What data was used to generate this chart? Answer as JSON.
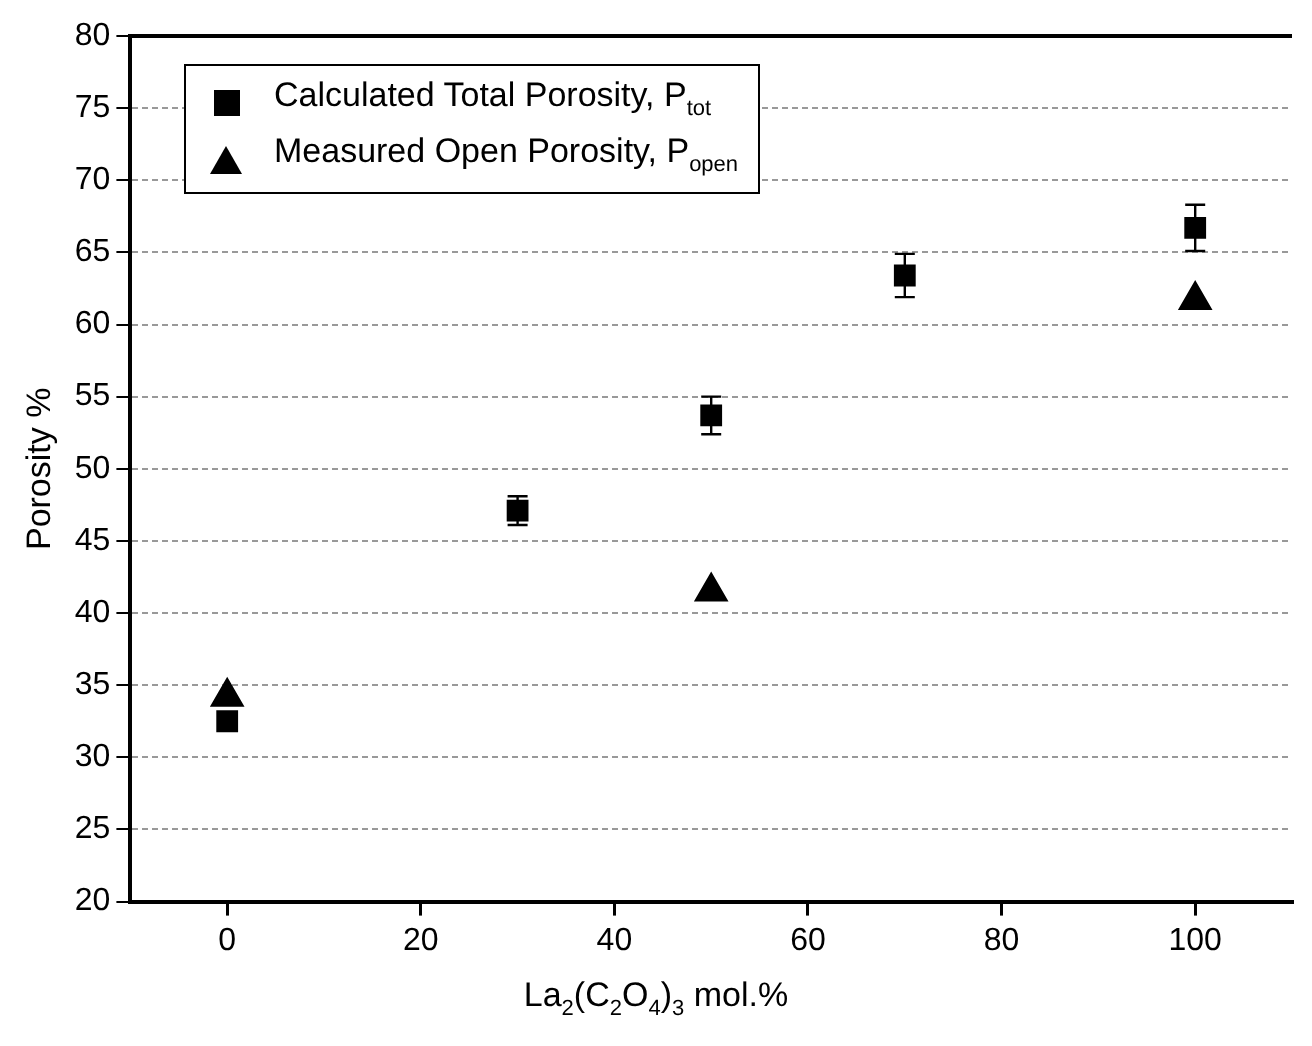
{
  "chart_data": {
    "type": "scatter",
    "xlabel": "La$_{2}$(C$_{2}$O$_{4}$)$_{3}$ mol.%",
    "ylabel": "Porosity %",
    "xlim": [
      -10,
      110
    ],
    "xticks": [
      0,
      20,
      40,
      60,
      80,
      100
    ],
    "ylim": [
      20,
      80
    ],
    "yticks": [
      20,
      25,
      30,
      35,
      40,
      45,
      50,
      55,
      60,
      65,
      70,
      75,
      80
    ],
    "grid": "y",
    "legend": "top left",
    "series": [
      {
        "name": "Calculated Total Porosity, P$_{tot}$",
        "color": "#000000",
        "marker": "square",
        "x": [
          0,
          30,
          50,
          70,
          100
        ],
        "values": [
          32.5,
          47.1,
          53.7,
          63.4,
          66.7
        ],
        "errors": [
          null,
          1,
          1.3,
          1.5,
          1.6
        ]
      },
      {
        "name": "Measured Open Porosity, P$_{open}$",
        "color": "#000000",
        "marker": "triangle",
        "x": [
          0,
          50,
          100
        ],
        "values": [
          34.2,
          41.5,
          61.7
        ]
      }
    ]
  }
}
